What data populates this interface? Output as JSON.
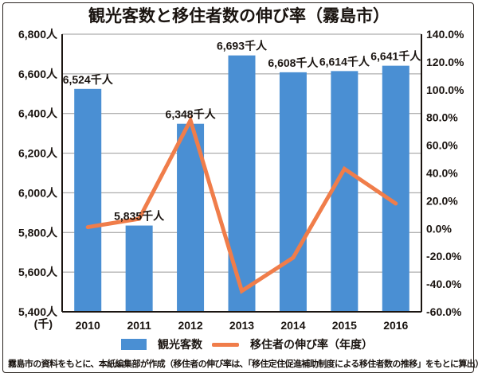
{
  "chart_data": {
    "type": "bar+line",
    "title": "観光客数と移住者数の伸び率（霧島市）",
    "categories": [
      "2010",
      "2011",
      "2012",
      "2013",
      "2014",
      "2015",
      "2016"
    ],
    "series": [
      {
        "name": "観光客数",
        "type": "bar",
        "axis": "left",
        "color": "#4a8fd3",
        "values": [
          6524,
          5835,
          6348,
          6693,
          6608,
          6614,
          6641
        ],
        "labels": [
          "6,524千人",
          "5,835千人",
          "6,348千人",
          "6,693千人",
          "6,608千人",
          "6,614千人",
          "6,641千人"
        ]
      },
      {
        "name": "移住者の伸び率（年度）",
        "type": "line",
        "axis": "right",
        "color": "#f07d4a",
        "values": [
          1,
          7,
          78,
          -45,
          -21,
          43,
          18
        ]
      }
    ],
    "left_axis": {
      "unit_note": "(千)",
      "ylim": [
        5400,
        6800
      ],
      "ticks": [
        6800,
        6600,
        6400,
        6200,
        6000,
        5800,
        5600,
        5400
      ],
      "tick_labels": [
        "6,800人",
        "6,600人",
        "6,400人",
        "6,200人",
        "6,000人",
        "5,800人",
        "5,600人",
        "5,400人"
      ]
    },
    "right_axis": {
      "ylim": [
        -60,
        140
      ],
      "ticks": [
        140,
        120,
        100,
        80,
        60,
        40,
        20,
        0,
        -20,
        -40,
        -60
      ],
      "tick_labels": [
        "140.0%",
        "120.0%",
        "100.0%",
        "80.0%",
        "60.0%",
        "40.0%",
        "20.0%",
        "0.0%",
        "-20.0%",
        "-40.0%",
        "-60.0%"
      ]
    },
    "grid": true,
    "legend": {
      "placement": "bottom",
      "items": [
        "観光客数",
        "移住者の伸び率（年度）"
      ]
    }
  },
  "source_note": "霧島市の資料をもとに、本紙編集部が作成（移住者の伸び率は、「移住定住促進補助制度による移住者数の推移」をもとに算出）"
}
